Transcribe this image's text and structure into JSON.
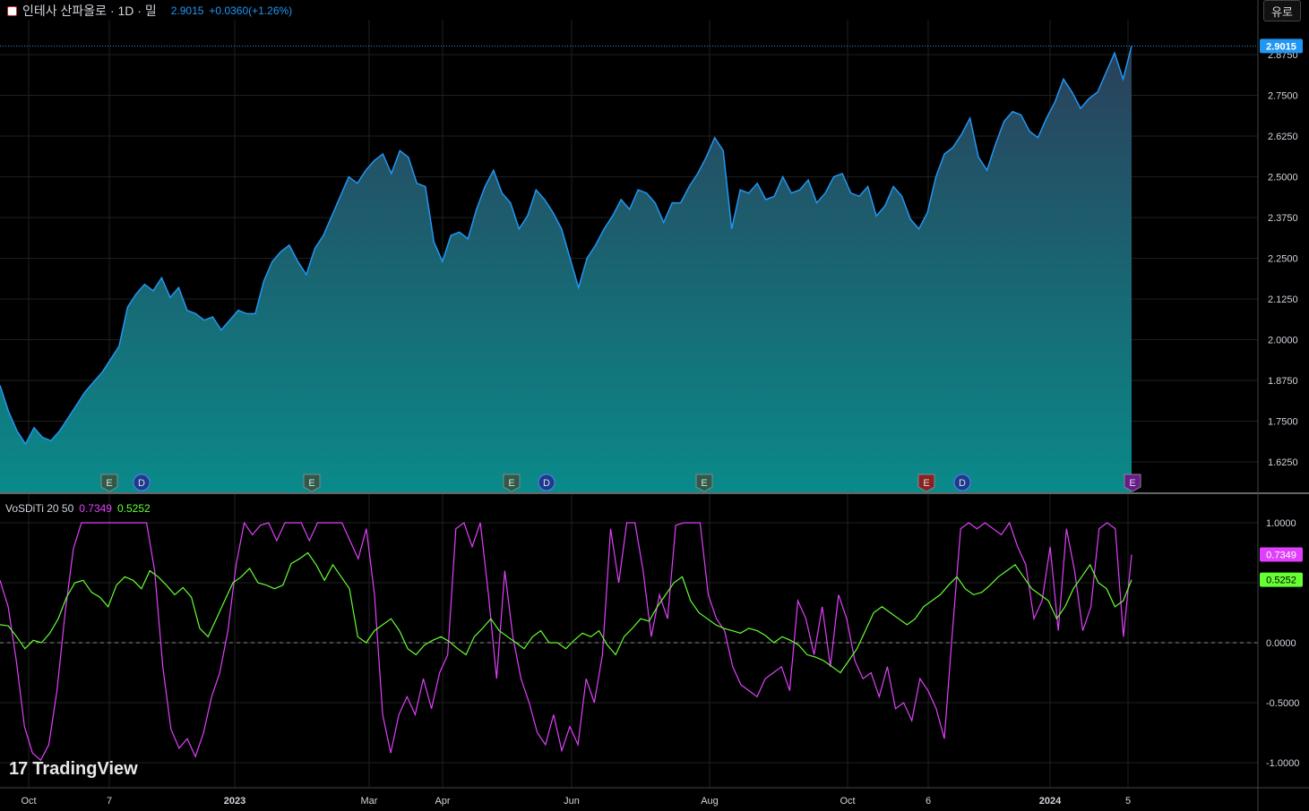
{
  "header": {
    "title": "인테사 산파올로 · 1D · 밀",
    "price": "2.9015",
    "change": "+0.0360(+1.26%)",
    "unit_button": "유로"
  },
  "indicator": {
    "name": "VoSDiTi 20 50",
    "value1": "0.7349",
    "value2": "0.5252",
    "value1_color": "#e040fb",
    "value2_color": "#66ff33"
  },
  "logo": {
    "mark": "17",
    "text": "TradingView"
  },
  "colors": {
    "price_line": "#2196f3",
    "fill_top": "#2a3f5a",
    "fill_bottom": "#0a8a8a",
    "grid": "#1f1f1f",
    "price_tag_bg": "#2196f3"
  },
  "chart_data": [
    {
      "type": "area",
      "name": "price",
      "x_ticks": [
        "Oct",
        "7",
        "2023",
        "Mar",
        "Apr",
        "Jun",
        "Aug",
        "Oct",
        "6",
        "2024",
        "5"
      ],
      "y_ticks": [
        "1.6250",
        "1.7500",
        "1.8750",
        "2.0000",
        "2.1250",
        "2.2500",
        "2.3750",
        "2.5000",
        "2.6250",
        "2.7500",
        "2.8750"
      ],
      "ylim": [
        1.55,
        2.95
      ],
      "last_value": 2.9015,
      "last_label": "2.9015",
      "values": [
        1.86,
        1.78,
        1.72,
        1.68,
        1.73,
        1.7,
        1.69,
        1.72,
        1.76,
        1.8,
        1.84,
        1.87,
        1.9,
        1.94,
        1.98,
        2.1,
        2.14,
        2.17,
        2.15,
        2.19,
        2.13,
        2.16,
        2.09,
        2.08,
        2.06,
        2.07,
        2.03,
        2.06,
        2.09,
        2.08,
        2.08,
        2.18,
        2.24,
        2.27,
        2.29,
        2.24,
        2.2,
        2.28,
        2.32,
        2.38,
        2.44,
        2.5,
        2.48,
        2.52,
        2.55,
        2.57,
        2.51,
        2.58,
        2.56,
        2.48,
        2.47,
        2.3,
        2.24,
        2.32,
        2.33,
        2.31,
        2.4,
        2.47,
        2.52,
        2.45,
        2.42,
        2.34,
        2.38,
        2.46,
        2.43,
        2.39,
        2.34,
        2.25,
        2.16,
        2.25,
        2.29,
        2.34,
        2.38,
        2.43,
        2.4,
        2.46,
        2.45,
        2.42,
        2.36,
        2.42,
        2.42,
        2.47,
        2.51,
        2.56,
        2.62,
        2.58,
        2.34,
        2.46,
        2.45,
        2.48,
        2.43,
        2.44,
        2.5,
        2.45,
        2.46,
        2.49,
        2.42,
        2.45,
        2.5,
        2.51,
        2.45,
        2.44,
        2.47,
        2.38,
        2.41,
        2.47,
        2.44,
        2.37,
        2.34,
        2.39,
        2.5,
        2.57,
        2.59,
        2.63,
        2.68,
        2.56,
        2.52,
        2.6,
        2.67,
        2.7,
        2.69,
        2.64,
        2.62,
        2.68,
        2.73,
        2.8,
        2.76,
        2.71,
        2.74,
        2.76,
        2.82,
        2.88,
        2.8,
        2.9015
      ],
      "events": [
        {
          "label": "E",
          "x": "7",
          "color": "#2e5a4a"
        },
        {
          "label": "D",
          "x": "7",
          "color": "#1e3a8a"
        },
        {
          "label": "E",
          "x": "2023",
          "color": "#2e5a4a"
        },
        {
          "label": "E",
          "x": "Jun",
          "color": "#2e5a4a"
        },
        {
          "label": "D",
          "x": "Jun",
          "color": "#1e3a8a"
        },
        {
          "label": "E",
          "x": "Aug",
          "color": "#2e5a4a"
        },
        {
          "label": "E",
          "x": "6",
          "color": "#8a2222"
        },
        {
          "label": "D",
          "x": "6",
          "color": "#1e3a8a"
        },
        {
          "label": "E",
          "x": "5",
          "color": "#6a1a8a"
        }
      ]
    },
    {
      "type": "line",
      "name": "VoSDiTi 20 50",
      "y_ticks": [
        "1.0000",
        "0.5000",
        "0.0000",
        "-0.5000",
        "-1.0000"
      ],
      "ylim": [
        -1.1,
        1.1
      ],
      "zero_line": 0,
      "series": [
        {
          "name": "VoSDiTi 20 50",
          "color": "#e040fb",
          "last_label": "0.7349",
          "values": [
            0.52,
            0.3,
            -0.15,
            -0.7,
            -0.92,
            -0.98,
            -0.85,
            -0.4,
            0.25,
            0.78,
            1.0,
            1.0,
            1.0,
            1.0,
            1.0,
            1.0,
            1.0,
            1.0,
            1.0,
            0.6,
            -0.2,
            -0.72,
            -0.88,
            -0.8,
            -0.95,
            -0.75,
            -0.45,
            -0.25,
            0.1,
            0.65,
            1.0,
            0.9,
            0.98,
            1.0,
            0.85,
            1.0,
            1.0,
            1.0,
            0.85,
            1.0,
            1.0,
            1.0,
            1.0,
            0.85,
            0.7,
            0.95,
            0.4,
            -0.6,
            -0.92,
            -0.6,
            -0.45,
            -0.6,
            -0.3,
            -0.55,
            -0.25,
            -0.1,
            0.95,
            1.0,
            0.8,
            1.0,
            0.4,
            -0.3,
            0.6,
            0.05,
            -0.3,
            -0.5,
            -0.75,
            -0.85,
            -0.6,
            -0.9,
            -0.7,
            -0.85,
            -0.3,
            -0.5,
            -0.1,
            0.95,
            0.5,
            1.0,
            1.0,
            0.6,
            0.05,
            0.4,
            0.2,
            0.98,
            1.0,
            1.0,
            1.0,
            0.4,
            0.2,
            0.1,
            -0.2,
            -0.35,
            -0.4,
            -0.45,
            -0.3,
            -0.25,
            -0.2,
            -0.4,
            0.35,
            0.2,
            -0.1,
            0.3,
            -0.2,
            0.4,
            0.2,
            -0.15,
            -0.3,
            -0.25,
            -0.45,
            -0.2,
            -0.55,
            -0.5,
            -0.65,
            -0.3,
            -0.4,
            -0.55,
            -0.8,
            0.1,
            0.95,
            1.0,
            0.95,
            1.0,
            0.95,
            0.9,
            1.0,
            0.8,
            0.65,
            0.2,
            0.35,
            0.8,
            0.1,
            0.95,
            0.6,
            0.1,
            0.3,
            0.95,
            1.0,
            0.95,
            0.05,
            0.7349
          ]
        },
        {
          "name": "VoSDiTi 20 50",
          "color": "#66ff33",
          "last_label": "0.5252",
          "values": [
            0.15,
            0.14,
            0.05,
            -0.05,
            0.02,
            0.0,
            0.08,
            0.2,
            0.38,
            0.5,
            0.52,
            0.42,
            0.38,
            0.3,
            0.48,
            0.55,
            0.52,
            0.45,
            0.6,
            0.55,
            0.48,
            0.4,
            0.46,
            0.38,
            0.12,
            0.05,
            0.2,
            0.35,
            0.5,
            0.55,
            0.62,
            0.5,
            0.48,
            0.45,
            0.48,
            0.66,
            0.7,
            0.75,
            0.65,
            0.52,
            0.65,
            0.55,
            0.45,
            0.05,
            0.0,
            0.1,
            0.15,
            0.2,
            0.1,
            -0.05,
            -0.1,
            -0.02,
            0.02,
            0.05,
            0.01,
            -0.05,
            -0.1,
            0.05,
            0.12,
            0.2,
            0.1,
            0.05,
            0.0,
            -0.05,
            0.05,
            0.1,
            0.0,
            0.0,
            -0.05,
            0.02,
            0.08,
            0.05,
            0.1,
            -0.02,
            -0.1,
            0.05,
            0.12,
            0.2,
            0.18,
            0.3,
            0.4,
            0.5,
            0.55,
            0.35,
            0.25,
            0.2,
            0.15,
            0.12,
            0.1,
            0.08,
            0.12,
            0.1,
            0.06,
            0.0,
            0.05,
            0.02,
            -0.02,
            -0.1,
            -0.12,
            -0.15,
            -0.2,
            -0.25,
            -0.15,
            -0.05,
            0.1,
            0.25,
            0.3,
            0.25,
            0.2,
            0.15,
            0.2,
            0.3,
            0.35,
            0.4,
            0.48,
            0.55,
            0.45,
            0.4,
            0.42,
            0.48,
            0.55,
            0.6,
            0.65,
            0.55,
            0.45,
            0.4,
            0.35,
            0.2,
            0.3,
            0.45,
            0.55,
            0.65,
            0.5,
            0.45,
            0.3,
            0.35,
            0.5252
          ]
        }
      ]
    }
  ]
}
